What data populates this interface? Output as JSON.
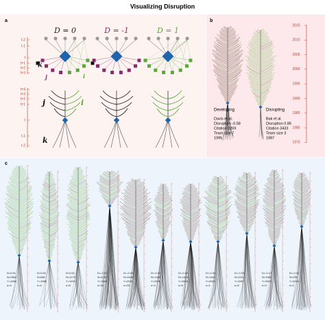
{
  "title": "Visualizing Disruption",
  "panel_a": {
    "label": "a",
    "formulas": [
      "D = 0",
      "D = -1",
      "D = 1"
    ],
    "time_top": [
      "t-2",
      "t-1",
      "t",
      "t+1",
      "t+2",
      "t+3"
    ],
    "time_bottom": [
      "t+4",
      "t+3",
      "t+2",
      "t+1",
      "t",
      "t-1",
      "t-2"
    ],
    "letters_top": [
      "k",
      "j",
      "i"
    ],
    "letters_bottom": [
      "j",
      "i",
      "k"
    ]
  },
  "panel_b": {
    "label": "b",
    "year_ticks": [
      "2015",
      "2010",
      "2005",
      "2000",
      "1995",
      "1990",
      "1985",
      "1980",
      "1975"
    ],
    "papers": [
      {
        "type": "Developing",
        "lines": [
          "Davis et al.",
          "Disruption -0.58",
          "Citation 3269",
          "Team size 7",
          "1995"
        ]
      },
      {
        "type": "Disrupting",
        "lines": [
          "Bak et al.",
          "Disruption 0.86",
          "Citation 3433",
          "Team size 3",
          "1987"
        ]
      }
    ]
  },
  "panel_c": {
    "label": "c",
    "trees": [
      {
        "lines": [
          "D=0.91",
          "N=2862",
          "Y=1965",
          "n=2"
        ]
      },
      {
        "lines": [
          "D=0.52",
          "N=882",
          "Y=1986",
          "n=4"
        ]
      },
      {
        "lines": [
          "D=0.61",
          "N=1175",
          "Y=1976",
          "n=8"
        ]
      },
      {
        "lines": [
          "D=-0.02",
          "N=4267",
          "Y=1989",
          "n=13"
        ]
      },
      {
        "lines": [
          "D=-0.03",
          "N=3438",
          "Y=2001",
          "n=20"
        ]
      },
      {
        "lines": [
          "D=-0.02",
          "N=1436",
          "Y=2001",
          "n=3"
        ]
      },
      {
        "lines": [
          "D=-0.03",
          "N=1443",
          "Y=2004",
          "n=5"
        ]
      },
      {
        "lines": [
          "D=-0.04",
          "N=1164",
          "Y=2004",
          "n=1"
        ]
      },
      {
        "lines": [
          "D=-0.03",
          "N=2211",
          "Y=1987",
          "n=5"
        ]
      },
      {
        "lines": [
          "D=-0.17",
          "N=1083",
          "Y=2003",
          "n=3"
        ]
      },
      {
        "lines": [
          "D=-0.42",
          "N=251",
          "Y=2020",
          "n=2"
        ]
      }
    ]
  }
}
